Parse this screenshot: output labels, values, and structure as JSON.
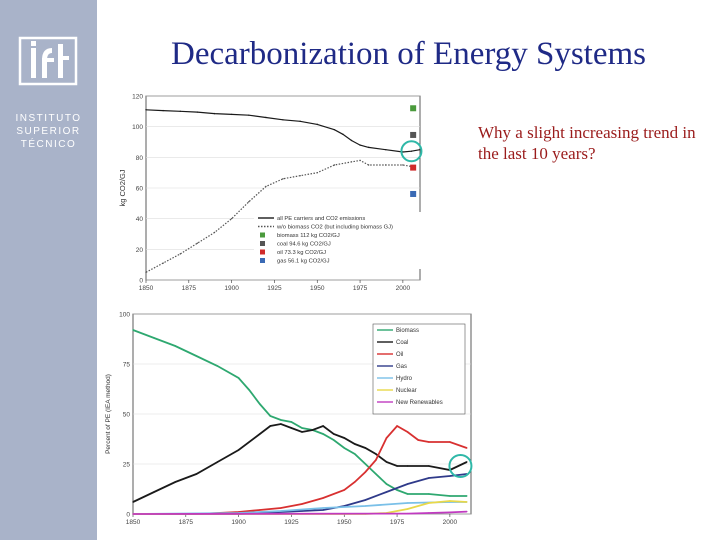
{
  "slide": {
    "title": "Decarbonization of Energy Systems",
    "question": "Why a slight increasing trend in the last 10 years?"
  },
  "logo": {
    "mark": "ist",
    "lines": [
      "INSTITUTO",
      "SUPERIOR",
      "TÉCNICO"
    ]
  },
  "colors": {
    "sidebar": "#a9b3c9",
    "title": "#1f2a86",
    "question": "#9a1b1b",
    "highlight_circle": "#2fb8a8"
  },
  "chart_data": [
    {
      "type": "line",
      "title": "",
      "xlabel": "",
      "ylabel": "kg CO2/GJ",
      "xlim": [
        1850,
        2010
      ],
      "ylim": [
        0,
        120
      ],
      "xticks": [
        1850,
        1875,
        1900,
        1925,
        1950,
        1975,
        2000
      ],
      "yticks": [
        0,
        20,
        40,
        60,
        80,
        100,
        120
      ],
      "legend_position": "center-right",
      "series": [
        {
          "name": "all PE carriers and CO2 emissions",
          "color": "#1a1a1a",
          "dash": false,
          "x": [
            1850,
            1860,
            1870,
            1880,
            1890,
            1900,
            1910,
            1920,
            1930,
            1940,
            1950,
            1960,
            1965,
            1970,
            1975,
            1980,
            1990,
            2000,
            2005,
            2010
          ],
          "y": [
            111,
            110.5,
            110,
            109.5,
            108.5,
            108,
            107.5,
            106,
            104.5,
            103.5,
            101.5,
            98,
            95,
            91,
            88,
            86.5,
            85,
            83.5,
            84,
            85
          ]
        },
        {
          "name": "w/o biomass CO2 (but including biomass GJ)",
          "color": "#555555",
          "dash": true,
          "x": [
            1850,
            1860,
            1870,
            1880,
            1890,
            1900,
            1910,
            1920,
            1930,
            1940,
            1950,
            1960,
            1970,
            1975,
            1980,
            1990,
            2000,
            2005
          ],
          "y": [
            5,
            11,
            17,
            24,
            31,
            40,
            51,
            61,
            66,
            68,
            70,
            75,
            77,
            78,
            75,
            75,
            75,
            74
          ]
        }
      ],
      "markers": [
        {
          "name": "biomass 112 kg CO2/GJ",
          "value": 112,
          "color": "#4a9a3c"
        },
        {
          "name": "coal 94.6 kg CO2/GJ",
          "value": 94.6,
          "color": "#555555"
        },
        {
          "name": "oil 73.3 kg CO2/GJ",
          "value": 73.3,
          "color": "#d02a2a"
        },
        {
          "name": "gas 56.1 kg CO2/GJ",
          "value": 56.1,
          "color": "#3a6ab5"
        }
      ],
      "highlight": {
        "x": 2005,
        "y": 84
      }
    },
    {
      "type": "line",
      "title": "",
      "xlabel": "",
      "ylabel": "Percent of PE (IEA method)",
      "xlim": [
        1850,
        2010
      ],
      "ylim": [
        0,
        100
      ],
      "xticks": [
        1850,
        1875,
        1900,
        1925,
        1950,
        1975,
        2000
      ],
      "yticks": [
        0,
        25,
        50,
        75,
        100
      ],
      "legend_position": "top-right",
      "series": [
        {
          "name": "Biomass",
          "color": "#2ea870",
          "x": [
            1850,
            1860,
            1870,
            1880,
            1890,
            1900,
            1905,
            1910,
            1915,
            1920,
            1925,
            1930,
            1935,
            1940,
            1945,
            1950,
            1955,
            1960,
            1965,
            1970,
            1975,
            1980,
            1990,
            2000,
            2008
          ],
          "y": [
            92,
            88,
            84,
            79,
            74,
            68,
            62,
            55,
            49,
            47,
            46,
            43,
            42,
            40,
            37,
            33,
            30,
            25,
            20,
            15,
            12,
            10,
            10,
            9,
            9
          ]
        },
        {
          "name": "Coal",
          "color": "#1a1a1a",
          "x": [
            1850,
            1860,
            1870,
            1880,
            1890,
            1900,
            1910,
            1915,
            1920,
            1925,
            1930,
            1935,
            1940,
            1945,
            1950,
            1955,
            1960,
            1965,
            1970,
            1975,
            1980,
            1990,
            2000,
            2008
          ],
          "y": [
            6,
            11,
            16,
            20,
            26,
            32,
            40,
            44,
            45,
            43,
            41,
            42,
            44,
            40,
            38,
            35,
            33,
            30,
            26,
            24,
            24,
            24,
            22,
            26
          ]
        },
        {
          "name": "Oil",
          "color": "#d83030",
          "x": [
            1850,
            1880,
            1900,
            1910,
            1920,
            1930,
            1940,
            1950,
            1955,
            1960,
            1965,
            1970,
            1975,
            1980,
            1985,
            1990,
            2000,
            2008
          ],
          "y": [
            0,
            0,
            1,
            2,
            3,
            5,
            8,
            12,
            16,
            21,
            27,
            38,
            44,
            41,
            37,
            36,
            36,
            33
          ]
        },
        {
          "name": "Gas",
          "color": "#2f3a8a",
          "x": [
            1850,
            1900,
            1920,
            1930,
            1940,
            1950,
            1960,
            1970,
            1980,
            1990,
            2000,
            2008
          ],
          "y": [
            0,
            0,
            1,
            1.5,
            2,
            4,
            7,
            11,
            15,
            18,
            19,
            20
          ]
        },
        {
          "name": "Hydro",
          "color": "#7ac0e8",
          "x": [
            1850,
            1900,
            1920,
            1940,
            1960,
            1980,
            2000,
            2008
          ],
          "y": [
            0,
            0.5,
            1.5,
            3,
            4,
            5.5,
            6,
            6
          ]
        },
        {
          "name": "Nuclear",
          "color": "#e8d84a",
          "x": [
            1850,
            1960,
            1970,
            1980,
            1990,
            2000,
            2008
          ],
          "y": [
            0,
            0,
            0.5,
            2.5,
            5.5,
            6.5,
            6
          ]
        },
        {
          "name": "New Renewables",
          "color": "#c03ac0",
          "x": [
            1850,
            1980,
            1990,
            2000,
            2008
          ],
          "y": [
            0,
            0.2,
            0.5,
            0.8,
            1.2
          ]
        }
      ],
      "highlight": {
        "x": 2005,
        "y": 24
      }
    }
  ]
}
